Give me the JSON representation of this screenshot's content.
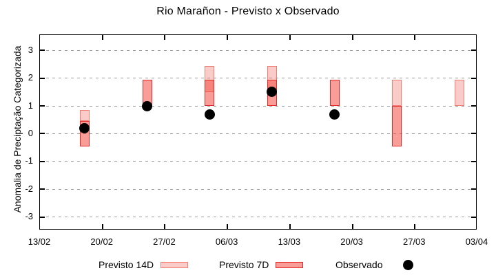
{
  "title": "Rio Marañon - Previsto x Observado",
  "y_axis": {
    "label": "Anomalia de Preciptação Categorizada",
    "tick_values": [
      3,
      2,
      1,
      0,
      -1,
      -2,
      -3
    ],
    "tick_labels": [
      "3",
      "2",
      "1",
      "0",
      "-1",
      "-2",
      "-3"
    ]
  },
  "x_axis": {
    "tick_labels": [
      "13/02",
      "20/02",
      "27/02",
      "06/03",
      "13/03",
      "20/03",
      "27/03",
      "03/04"
    ],
    "tick_day_offsets": [
      0,
      7,
      14,
      21,
      28,
      35,
      42,
      49
    ]
  },
  "legend": {
    "items": [
      {
        "label": "Previsto 14D",
        "marker": "bar-14d"
      },
      {
        "label": "Previsto 7D",
        "marker": "bar-7d"
      },
      {
        "label": "Observado",
        "marker": "dot"
      }
    ]
  },
  "colors": {
    "previsto14_fill": "rgba(242,110,100,0.35)",
    "previsto14_border": "#ee6e62",
    "previsto7_fill": "rgba(242,60,48,0.5)",
    "previsto7_border": "#e42626",
    "observado": "#000000",
    "grid": "#9a9a9a",
    "axis": "#000000"
  },
  "chart_data": {
    "type": "bar",
    "subtype": "range-bars-with-scatter",
    "title": "Rio Marañon - Previsto x Observado",
    "xlabel": "",
    "ylabel": "Anomalia de Preciptação Categorizada",
    "ylim": [
      -3.5,
      3.6
    ],
    "x_tick_labels": [
      "13/02",
      "20/02",
      "27/02",
      "06/03",
      "13/03",
      "20/03",
      "27/03",
      "03/04"
    ],
    "grid": "horizontal-dashed",
    "legend_position": "bottom",
    "day_offsets_from_start": {
      "18/02": 5,
      "25/02": 12,
      "04/03": 19,
      "11/03": 26,
      "18/03": 33,
      "25/03": 40,
      "01/04": 47
    },
    "series": [
      {
        "name": "Previsto 14D",
        "type": "range-bar",
        "points": [
          {
            "date": "18/02",
            "low": 0.45,
            "high": 0.85
          },
          {
            "date": "04/03",
            "low": 1.5,
            "high": 2.45
          },
          {
            "date": "11/03",
            "low": 1.5,
            "high": 2.45
          },
          {
            "date": "25/03",
            "low": 1.0,
            "high": 1.95
          },
          {
            "date": "01/04",
            "low": 1.0,
            "high": 1.95
          }
        ]
      },
      {
        "name": "Previsto 7D",
        "type": "range-bar",
        "points": [
          {
            "date": "18/02",
            "low": -0.45,
            "high": 0.45
          },
          {
            "date": "25/02",
            "low": 1.0,
            "high": 1.95
          },
          {
            "date": "04/03",
            "low": 1.0,
            "high": 1.95
          },
          {
            "date": "11/03",
            "low": 1.0,
            "high": 1.95
          },
          {
            "date": "18/03",
            "low": 1.0,
            "high": 1.95
          },
          {
            "date": "25/03",
            "low": -0.45,
            "high": 1.0
          }
        ]
      },
      {
        "name": "Observado",
        "type": "scatter",
        "points": [
          {
            "date": "18/02",
            "value": 0.2
          },
          {
            "date": "25/02",
            "value": 1.0
          },
          {
            "date": "04/03",
            "value": 0.7
          },
          {
            "date": "11/03",
            "value": 1.5
          },
          {
            "date": "18/03",
            "value": 0.7
          }
        ]
      }
    ]
  }
}
